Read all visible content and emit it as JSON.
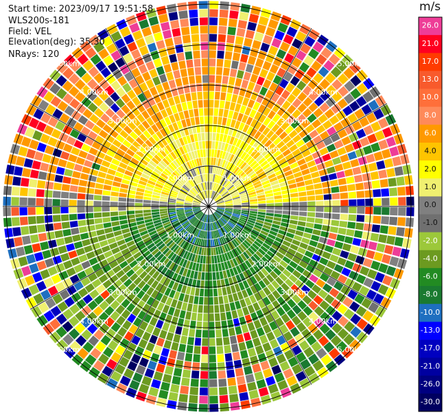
{
  "info": {
    "start_time": "Start time: 2023/09/17 19:51:58",
    "instrument": "WLS200s-181",
    "field": "Field: VEL",
    "elevation": "Elevation(deg): 35.30",
    "nrays": "NRays: 120"
  },
  "colorbar": {
    "unit": "m/s",
    "ticks": [
      "26.0",
      "21.0",
      "17.0",
      "13.0",
      "10.0",
      "8.0",
      "6.0",
      "4.0",
      "2.0",
      "1.0",
      "0.0",
      "-1.0",
      "-2.0",
      "-4.0",
      "-6.0",
      "-8.0",
      "-10.0",
      "-13.0",
      "-17.0",
      "-21.0",
      "-26.0",
      "-30.0"
    ],
    "colors": [
      "#ee3d97",
      "#ff0020",
      "#ff3b00",
      "#f85a2c",
      "#ff6f3a",
      "#ff8a5a",
      "#ff9900",
      "#ffc400",
      "#ffff00",
      "#f0f070",
      "#808080",
      "#707070",
      "#9cc83a",
      "#6c9a20",
      "#228b22",
      "#1a7a30",
      "#1e6fc0",
      "#0000ff",
      "#0000c0",
      "#0000a0",
      "#000080",
      "#000060"
    ]
  },
  "range_labels": [
    "1.00km",
    "2.00km",
    "3.00km",
    "4.00km",
    "5.00km"
  ],
  "chart_data": {
    "type": "ppi",
    "field": "VEL",
    "units": "m/s",
    "elevation_deg": 35.3,
    "nrays": 120,
    "range_rings_km": [
      1,
      2,
      3,
      4,
      5
    ],
    "vmin": -30.0,
    "vmax": 26.0
  }
}
